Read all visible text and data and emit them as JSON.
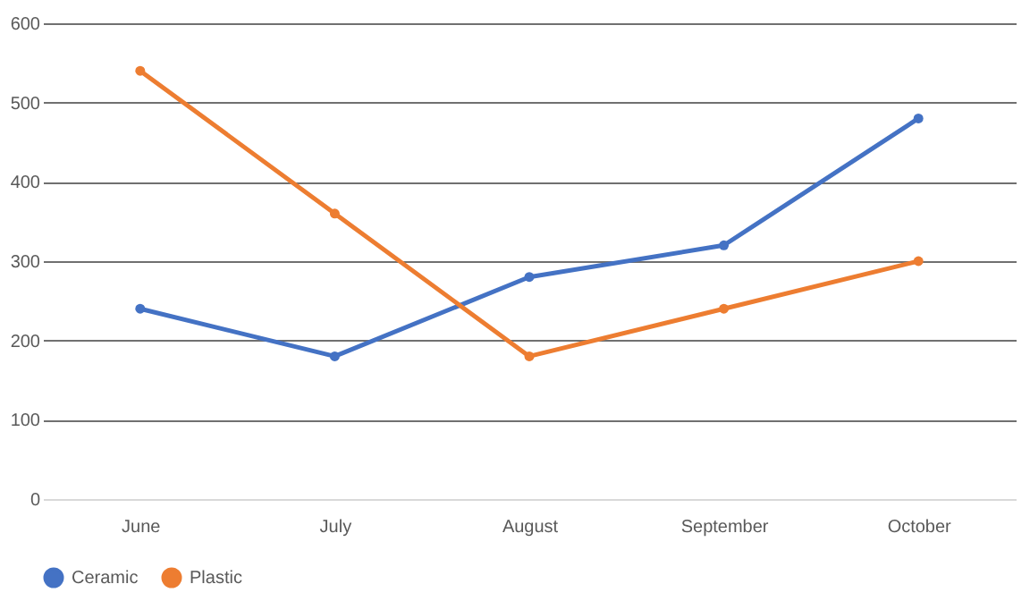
{
  "chart_data": {
    "type": "line",
    "categories": [
      "June",
      "July",
      "August",
      "September",
      "October"
    ],
    "series": [
      {
        "name": "Ceramic",
        "color": "#4472c4",
        "values": [
          240,
          180,
          280,
          320,
          480
        ]
      },
      {
        "name": "Plastic",
        "color": "#ed7d31",
        "values": [
          540,
          360,
          180,
          240,
          300
        ]
      }
    ],
    "ylim": [
      0,
      600
    ],
    "yticks": [
      0,
      100,
      200,
      300,
      400,
      500,
      600
    ],
    "grid": "y",
    "legend": "bottom",
    "marker": "circle",
    "line_style": "solid"
  }
}
